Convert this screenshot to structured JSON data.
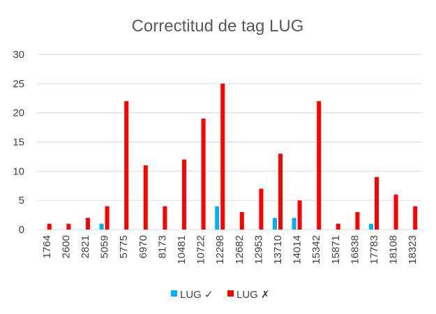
{
  "chart_data": {
    "type": "bar",
    "title": "Correctitud de tag LUG",
    "xlabel": "",
    "ylabel": "",
    "ylim": [
      0,
      30
    ],
    "yticks": [
      0,
      5,
      10,
      15,
      20,
      25,
      30
    ],
    "grid": true,
    "legend_position": "bottom",
    "categories": [
      "1764",
      "2600",
      "2821",
      "5059",
      "5775",
      "6970",
      "8173",
      "10481",
      "10722",
      "12298",
      "12682",
      "12953",
      "13710",
      "14014",
      "15342",
      "15871",
      "16838",
      "17783",
      "18108",
      "18323"
    ],
    "series": [
      {
        "name": "LUG ✓",
        "color": "#00b0f0",
        "values": [
          0,
          0,
          0,
          1,
          0,
          0,
          0,
          0,
          0,
          4,
          0,
          0,
          2,
          2,
          0,
          0,
          0,
          1,
          0,
          0
        ]
      },
      {
        "name": "LUG ✗",
        "color": "#ff0000",
        "values": [
          1,
          1,
          2,
          4,
          22,
          11,
          4,
          12,
          19,
          25,
          3,
          7,
          13,
          5,
          22,
          1,
          3,
          9,
          6,
          4
        ]
      }
    ]
  }
}
